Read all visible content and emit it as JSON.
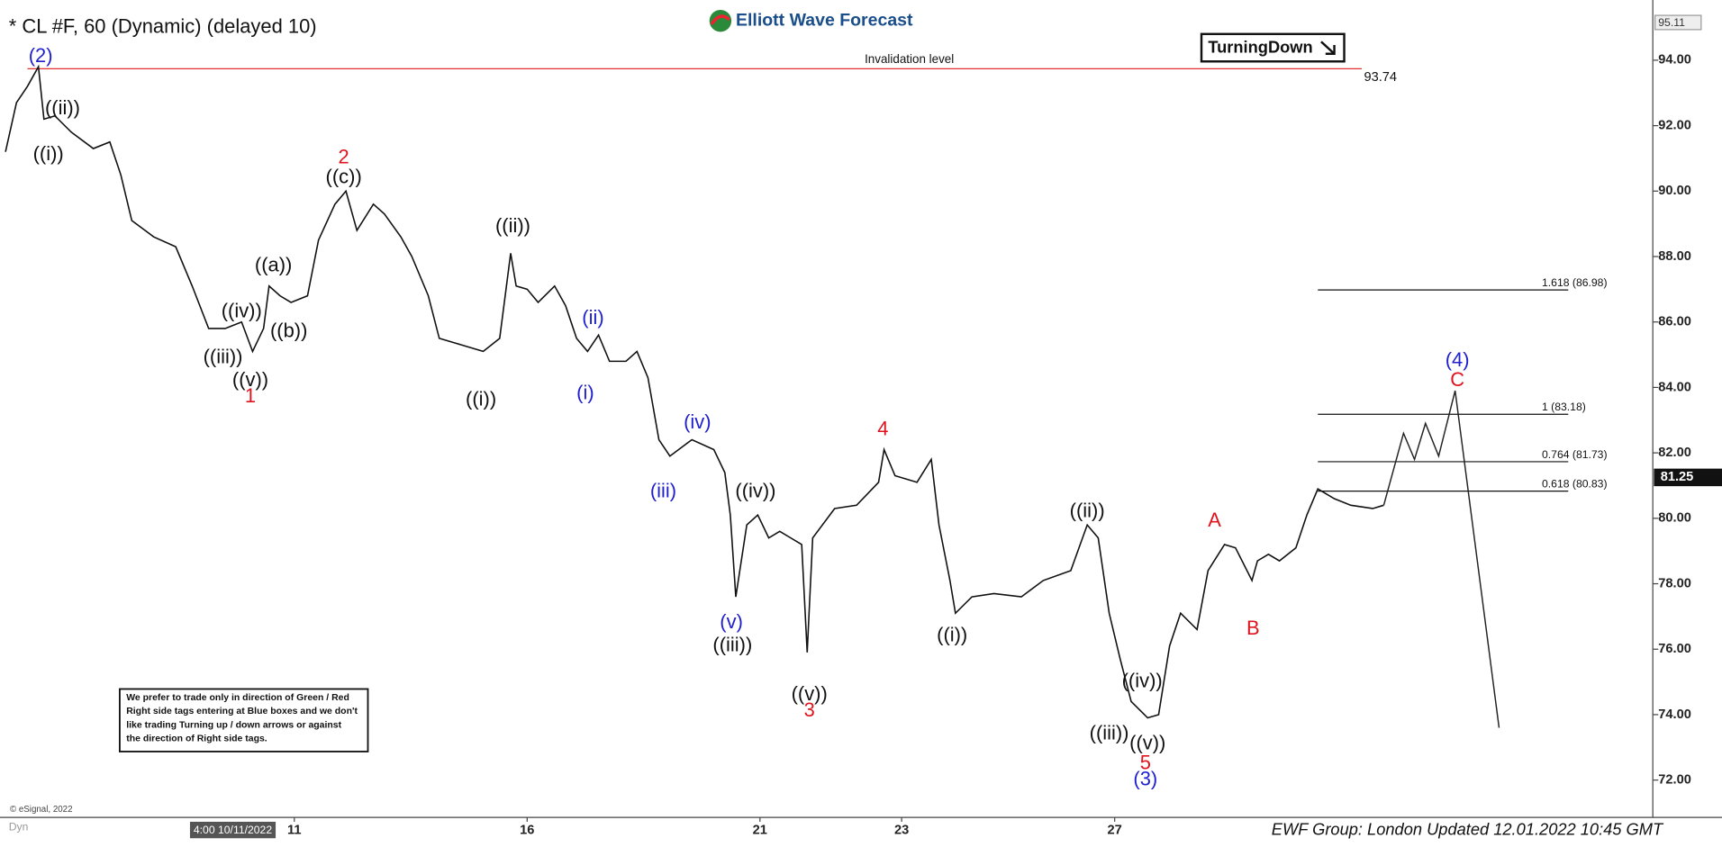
{
  "chart_data": {
    "type": "line",
    "title": "* CL #F, 60 (Dynamic) (delayed 10)",
    "brand": "Elliott Wave Forecast",
    "signal": "TurningDown",
    "footer": "EWF Group: London Updated 12.01.2022 10:45 GMT",
    "source": "© eSignal, 2022",
    "mode": "Dyn",
    "note": [
      "We prefer to trade only in direction of Green / Red",
      "Right side tags entering at Blue boxes and we don't",
      "like trading Turning up / down arrows or against",
      "the direction of Right side tags."
    ],
    "color": "#111111",
    "x": [
      0.5,
      1.5,
      2.5,
      3.5,
      4,
      5,
      6.5,
      8.5,
      10,
      11,
      12,
      14,
      16,
      17.5,
      19,
      20.5,
      22,
      23,
      24,
      24.5,
      25.5,
      26.5,
      28,
      29,
      30.5,
      31.5,
      32.5,
      34,
      35,
      36.5,
      37.5,
      39,
      40,
      42,
      44,
      45.5,
      46.5,
      47,
      48,
      49,
      50.5,
      51.5,
      52.5,
      53.5,
      54.5,
      55.5,
      57,
      58,
      59,
      60,
      61,
      63,
      65,
      66,
      66.5,
      67,
      68,
      69,
      70,
      71,
      72,
      73,
      73.5,
      74,
      76,
      78,
      80,
      80.5,
      81.5,
      83.5,
      84.8,
      85.5,
      86.5,
      87,
      88.5,
      90.5,
      93,
      95,
      97.5,
      99,
      100,
      101,
      102,
      103,
      104.5,
      105.5,
      106.5,
      107.5,
      109,
      110,
      111.5,
      112.5,
      114,
      114.5,
      115.5,
      116.5,
      118,
      119,
      120,
      121.5,
      123,
      125,
      126
    ],
    "values": [
      91.2,
      92.7,
      93.2,
      93.8,
      92.2,
      92.3,
      91.8,
      91.3,
      91.5,
      90.5,
      89.1,
      88.6,
      88.3,
      87.1,
      85.8,
      85.8,
      86.0,
      85.1,
      85.8,
      87.1,
      86.8,
      86.6,
      86.8,
      88.5,
      89.6,
      90.0,
      88.8,
      89.6,
      89.3,
      88.6,
      88.0,
      86.8,
      85.5,
      85.3,
      85.1,
      85.5,
      88.1,
      87.1,
      87.0,
      86.6,
      87.1,
      86.5,
      85.5,
      85.1,
      85.6,
      84.8,
      84.8,
      85.1,
      84.3,
      82.4,
      81.9,
      82.4,
      82.1,
      81.4,
      80.1,
      77.6,
      79.8,
      80.1,
      79.4,
      79.6,
      79.4,
      79.2,
      75.9,
      79.4,
      80.3,
      80.4,
      81.1,
      82.1,
      81.3,
      81.1,
      81.8,
      79.8,
      78.1,
      77.1,
      77.6,
      77.7,
      77.6,
      78.1,
      78.4,
      79.8,
      79.4,
      77.1,
      75.7,
      74.4,
      73.9,
      74.0,
      76.1,
      77.1,
      76.6,
      78.4,
      79.2,
      79.1,
      78.1,
      78.7,
      78.9,
      78.7,
      79.1,
      80.1,
      80.9,
      80.6,
      80.4,
      80.3,
      80.4
    ],
    "projection": {
      "x": [
        126,
        127.8,
        128.8,
        129.8,
        131,
        132.5,
        136.5
      ],
      "values": [
        80.4,
        82.6,
        81.8,
        82.9,
        81.9,
        83.9,
        73.6
      ]
    },
    "xlim": [
      0,
      150.5
    ],
    "xticks": [
      {
        "value": 26.8,
        "label": "11"
      },
      {
        "value": 48,
        "label": "16"
      },
      {
        "value": 69.2,
        "label": "21"
      },
      {
        "value": 82.1,
        "label": "23"
      },
      {
        "value": 101.5,
        "label": "27"
      }
    ],
    "x_cursor": {
      "value": 21.1,
      "label": "4:00 10/11/2022"
    },
    "ylim": [
      70.86,
      95.84
    ],
    "yticks": [
      {
        "value": 72,
        "label": "72.00"
      },
      {
        "value": 74,
        "label": "74.00"
      },
      {
        "value": 76,
        "label": "76.00"
      },
      {
        "value": 78,
        "label": "78.00"
      },
      {
        "value": 80,
        "label": "80.00"
      },
      {
        "value": 82,
        "label": "82.00"
      },
      {
        "value": 84,
        "label": "84.00"
      },
      {
        "value": 86,
        "label": "86.00"
      },
      {
        "value": 88,
        "label": "88.00"
      },
      {
        "value": 90,
        "label": "90.00"
      },
      {
        "value": 92,
        "label": "92.00"
      },
      {
        "value": 94,
        "label": "94.00"
      }
    ],
    "top_price": 95.11,
    "current_price": 81.25,
    "invalidation": {
      "value": 93.74,
      "title": "Invalidation level",
      "color": "#e03030"
    },
    "levels": [
      {
        "value": 86.98,
        "label": "1.618 (86.98)"
      },
      {
        "value": 83.18,
        "label": "1 (83.18)"
      },
      {
        "value": 81.73,
        "label": "0.764 (81.73)"
      },
      {
        "value": 80.83,
        "label": "0.618 (80.83)"
      }
    ],
    "wave_labels": [
      {
        "text": "(2)",
        "color": "#1f1fcf",
        "x": 3.7,
        "y": 94.1
      },
      {
        "text": "((ii))",
        "color": "#111111",
        "x": 5.7,
        "y": 92.5
      },
      {
        "text": "((i))",
        "color": "#111111",
        "x": 4.4,
        "y": 91.1
      },
      {
        "text": "2",
        "color": "#e0141e",
        "x": 31.3,
        "y": 91.0
      },
      {
        "text": "((c))",
        "color": "#111111",
        "x": 31.3,
        "y": 90.4
      },
      {
        "text": "((a))",
        "color": "#111111",
        "x": 24.9,
        "y": 87.7
      },
      {
        "text": "((iv))",
        "color": "#111111",
        "x": 22.0,
        "y": 86.3
      },
      {
        "text": "((b))",
        "color": "#111111",
        "x": 26.3,
        "y": 85.7
      },
      {
        "text": "((iii))",
        "color": "#111111",
        "x": 20.3,
        "y": 84.9
      },
      {
        "text": "((v))",
        "color": "#111111",
        "x": 22.8,
        "y": 84.2
      },
      {
        "text": "1",
        "color": "#e0141e",
        "x": 22.8,
        "y": 83.7
      },
      {
        "text": "((ii))",
        "color": "#111111",
        "x": 46.7,
        "y": 88.9
      },
      {
        "text": "((i))",
        "color": "#111111",
        "x": 43.8,
        "y": 83.6
      },
      {
        "text": "(ii)",
        "color": "#1f1fcf",
        "x": 54.0,
        "y": 86.1
      },
      {
        "text": "(i)",
        "color": "#1f1fcf",
        "x": 53.3,
        "y": 83.8
      },
      {
        "text": "(iv)",
        "color": "#1f1fcf",
        "x": 63.5,
        "y": 82.9
      },
      {
        "text": "(iii)",
        "color": "#1f1fcf",
        "x": 60.4,
        "y": 80.8
      },
      {
        "text": "((iv))",
        "color": "#111111",
        "x": 68.8,
        "y": 80.8
      },
      {
        "text": "(v)",
        "color": "#1f1fcf",
        "x": 66.6,
        "y": 76.8
      },
      {
        "text": "((iii))",
        "color": "#111111",
        "x": 66.7,
        "y": 76.1
      },
      {
        "text": "((v))",
        "color": "#111111",
        "x": 73.7,
        "y": 74.6
      },
      {
        "text": "3",
        "color": "#e0141e",
        "x": 73.7,
        "y": 74.1
      },
      {
        "text": "4",
        "color": "#e0141e",
        "x": 80.4,
        "y": 82.7
      },
      {
        "text": "((i))",
        "color": "#111111",
        "x": 86.7,
        "y": 76.4
      },
      {
        "text": "((ii))",
        "color": "#111111",
        "x": 99.0,
        "y": 80.2
      },
      {
        "text": "A",
        "color": "#e0141e",
        "x": 110.6,
        "y": 79.9
      },
      {
        "text": "B",
        "color": "#e0141e",
        "x": 114.1,
        "y": 76.6
      },
      {
        "text": "((iv))",
        "color": "#111111",
        "x": 104.0,
        "y": 75.0
      },
      {
        "text": "((iii))",
        "color": "#111111",
        "x": 101.0,
        "y": 73.4
      },
      {
        "text": "((v))",
        "color": "#111111",
        "x": 104.5,
        "y": 73.1
      },
      {
        "text": "5",
        "color": "#e0141e",
        "x": 104.3,
        "y": 72.5
      },
      {
        "text": "(3)",
        "color": "#1f1fcf",
        "x": 104.3,
        "y": 72.0
      },
      {
        "text": "(4)",
        "color": "#1f1fcf",
        "x": 132.7,
        "y": 84.8
      },
      {
        "text": "C",
        "color": "#e0141e",
        "x": 132.7,
        "y": 84.2
      }
    ]
  }
}
